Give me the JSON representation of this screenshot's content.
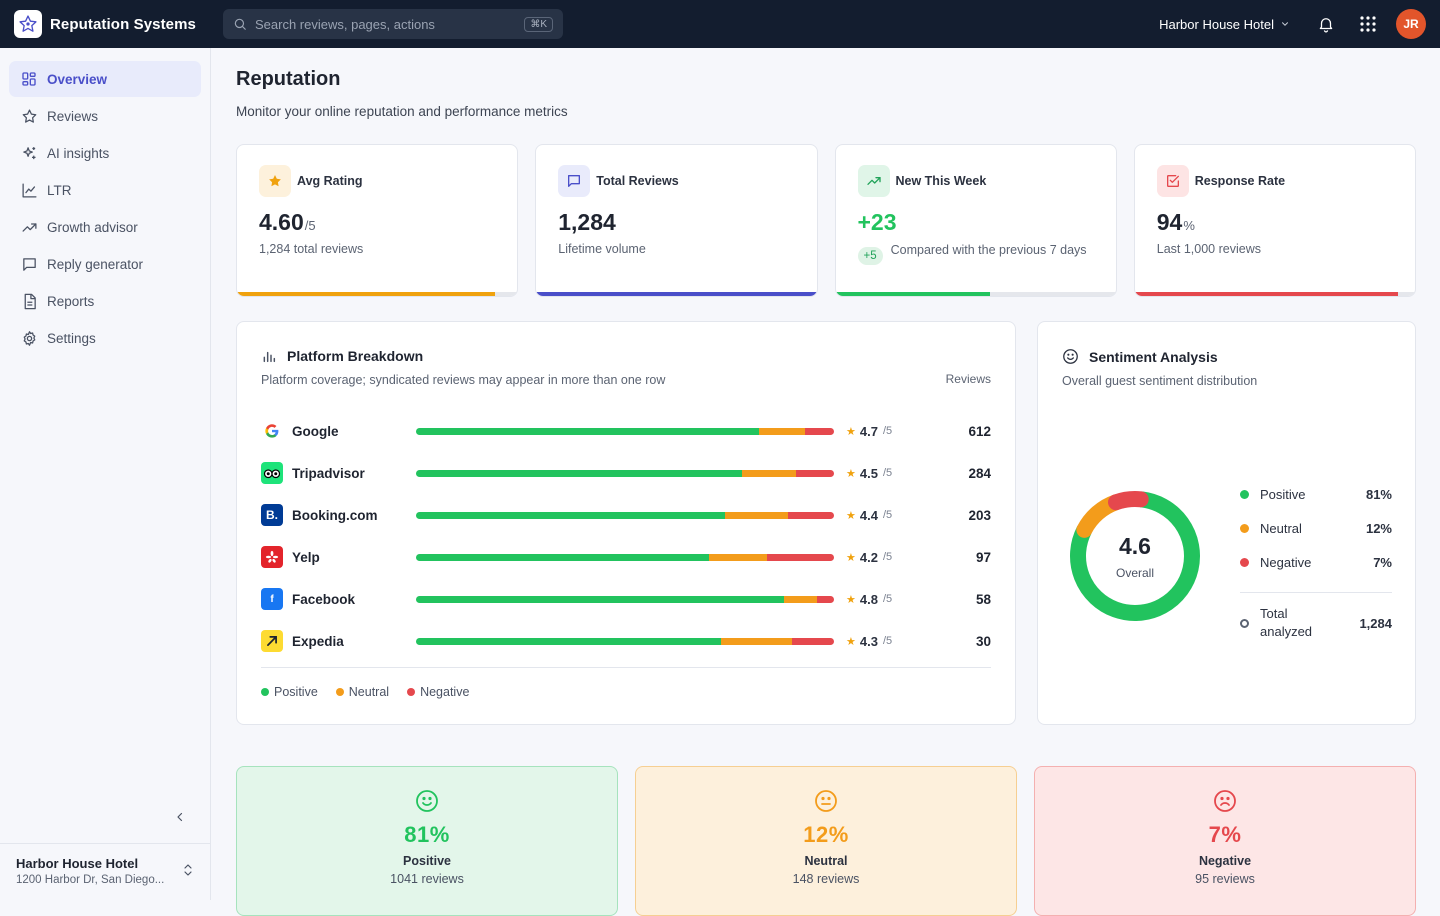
{
  "app": {
    "name": "Reputation Systems"
  },
  "search": {
    "placeholder": "Search reviews, pages, actions",
    "shortcut": "⌘K"
  },
  "topbar": {
    "hotel": "Harbor House Hotel",
    "avatar_initials": "JR"
  },
  "sidebar": {
    "items": [
      {
        "label": "Overview",
        "icon": "grid-icon",
        "active": true
      },
      {
        "label": "Reviews",
        "icon": "star-icon"
      },
      {
        "label": "AI insights",
        "icon": "sparkle-icon"
      },
      {
        "label": "LTR",
        "icon": "line-chart-icon"
      },
      {
        "label": "Growth advisor",
        "icon": "trend-icon"
      },
      {
        "label": "Reply generator",
        "icon": "message-icon"
      },
      {
        "label": "Reports",
        "icon": "document-icon"
      },
      {
        "label": "Settings",
        "icon": "gear-icon"
      }
    ],
    "footer": {
      "name": "Harbor House Hotel",
      "address": "1200 Harbor Dr, San Diego..."
    }
  },
  "page": {
    "title": "Reputation",
    "subtitle": "Monitor your online reputation and performance metrics"
  },
  "kpis": {
    "avg_rating": {
      "label": "Avg Rating",
      "value": "4.60",
      "unit": "/5",
      "sub": "1,284 total reviews",
      "progress": 0.92,
      "color": "#f0a20e"
    },
    "total_reviews": {
      "label": "Total Reviews",
      "value": "1,284",
      "sub": "Lifetime volume",
      "progress": 1.0,
      "color": "#4a4fc9"
    },
    "new_this_week": {
      "label": "New This Week",
      "value": "+23",
      "delta": "+5",
      "sub": "Compared with the previous 7 days",
      "progress": 0.55,
      "color": "#22c35e"
    },
    "response_rate": {
      "label": "Response Rate",
      "value": "94",
      "unit": "%",
      "sub": "Last 1,000 reviews",
      "progress": 0.94,
      "color": "#e5484d"
    }
  },
  "platforms": {
    "title": "Platform Breakdown",
    "description": "Platform coverage; syndicated reviews may appear in more than one row",
    "column_header": "Reviews",
    "rows": [
      {
        "name": "Google",
        "rating": "4.7",
        "of": "/5",
        "count": "612",
        "pos": 82,
        "neu": 11,
        "neg": 7
      },
      {
        "name": "Tripadvisor",
        "rating": "4.5",
        "of": "/5",
        "count": "284",
        "pos": 78,
        "neu": 13,
        "neg": 9
      },
      {
        "name": "Booking.com",
        "rating": "4.4",
        "of": "/5",
        "count": "203",
        "pos": 74,
        "neu": 15,
        "neg": 11
      },
      {
        "name": "Yelp",
        "rating": "4.2",
        "of": "/5",
        "count": "97",
        "pos": 70,
        "neu": 14,
        "neg": 16
      },
      {
        "name": "Facebook",
        "rating": "4.8",
        "of": "/5",
        "count": "58",
        "pos": 88,
        "neu": 8,
        "neg": 4
      },
      {
        "name": "Expedia",
        "rating": "4.3",
        "of": "/5",
        "count": "30",
        "pos": 73,
        "neu": 17,
        "neg": 10
      }
    ],
    "legend": [
      "Positive",
      "Neutral",
      "Negative"
    ]
  },
  "sentiment": {
    "title": "Sentiment Analysis",
    "description": "Overall guest sentiment distribution",
    "overall_value": "4.6",
    "overall_label": "Overall",
    "items": [
      {
        "label": "Positive",
        "pct": "81%",
        "value": 81,
        "color": "#22c35e"
      },
      {
        "label": "Neutral",
        "pct": "12%",
        "value": 12,
        "color": "#f39c1b"
      },
      {
        "label": "Negative",
        "pct": "7%",
        "value": 7,
        "color": "#e5484d"
      }
    ],
    "total_label": "Total analyzed",
    "total_value": "1,284"
  },
  "summary": [
    {
      "pct": "81%",
      "label": "Positive",
      "count": "1041 reviews",
      "color": "#22c35e"
    },
    {
      "pct": "12%",
      "label": "Neutral",
      "count": "148 reviews",
      "color": "#f39c1b"
    },
    {
      "pct": "7%",
      "label": "Negative",
      "count": "95 reviews",
      "color": "#e5484d"
    }
  ]
}
